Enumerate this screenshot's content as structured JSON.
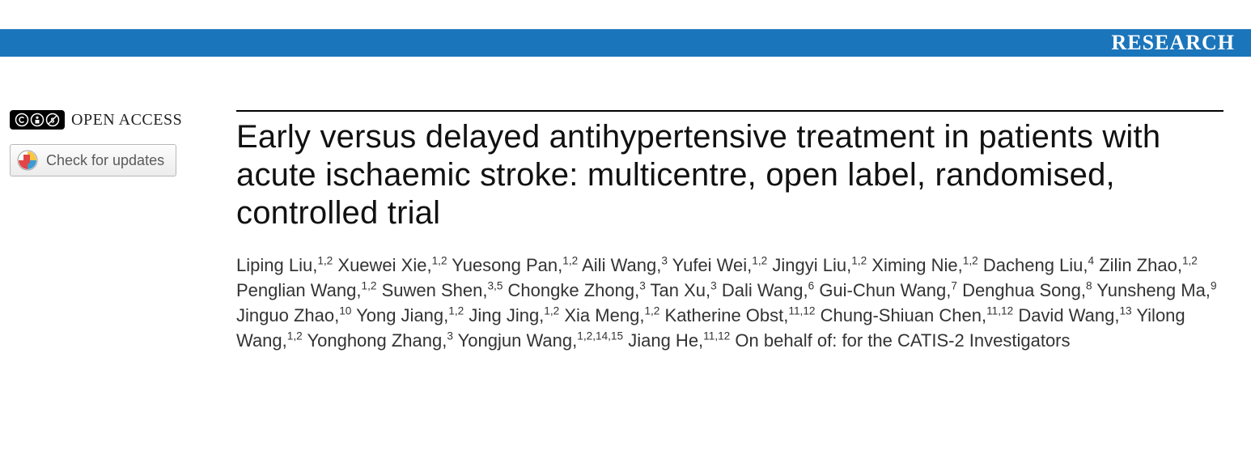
{
  "banner": {
    "label": "RESEARCH",
    "bg_color": "#1b75bb",
    "text_color": "#ffffff"
  },
  "sidebar": {
    "open_access_label": "OPEN ACCESS",
    "cc_icon_name": "cc-by-nc-badge",
    "updates_button_label": "Check for updates",
    "updates_icon_name": "crossmark-icon"
  },
  "article": {
    "title": "Early versus delayed antihypertensive treatment in patients with acute ischaemic stroke: multicentre, open label, randomised, controlled trial",
    "title_fontsize": 40,
    "title_color": "#111111",
    "author_fontsize": 22,
    "author_color": "#333333",
    "rule_color": "#000000",
    "suffix_text": " On behalf of: for the CATIS-2 Investigators",
    "authors": [
      {
        "name": "Liping Liu",
        "affil": "1,2"
      },
      {
        "name": "Xuewei Xie",
        "affil": "1,2"
      },
      {
        "name": "Yuesong Pan",
        "affil": "1,2"
      },
      {
        "name": "Aili Wang",
        "affil": "3"
      },
      {
        "name": "Yufei Wei",
        "affil": "1,2"
      },
      {
        "name": "Jingyi Liu",
        "affil": "1,2"
      },
      {
        "name": "Ximing Nie",
        "affil": "1,2"
      },
      {
        "name": "Dacheng Liu",
        "affil": "4"
      },
      {
        "name": "Zilin Zhao",
        "affil": "1,2"
      },
      {
        "name": "Penglian Wang",
        "affil": "1,2"
      },
      {
        "name": "Suwen Shen",
        "affil": "3,5"
      },
      {
        "name": "Chongke Zhong",
        "affil": "3"
      },
      {
        "name": "Tan Xu",
        "affil": "3"
      },
      {
        "name": "Dali Wang",
        "affil": "6"
      },
      {
        "name": "Gui-Chun Wang",
        "affil": "7"
      },
      {
        "name": "Denghua Song",
        "affil": "8"
      },
      {
        "name": "Yunsheng Ma",
        "affil": "9"
      },
      {
        "name": "Jinguo Zhao",
        "affil": "10"
      },
      {
        "name": "Yong Jiang",
        "affil": "1,2"
      },
      {
        "name": "Jing Jing",
        "affil": "1,2"
      },
      {
        "name": "Xia Meng",
        "affil": "1,2"
      },
      {
        "name": "Katherine Obst",
        "affil": "11,12"
      },
      {
        "name": "Chung-Shiuan Chen",
        "affil": "11,12"
      },
      {
        "name": "David Wang",
        "affil": "13"
      },
      {
        "name": "Yilong Wang",
        "affil": "1,2"
      },
      {
        "name": "Yonghong Zhang",
        "affil": "3"
      },
      {
        "name": "Yongjun Wang",
        "affil": "1,2,14,15"
      },
      {
        "name": "Jiang He",
        "affil": "11,12"
      }
    ]
  }
}
